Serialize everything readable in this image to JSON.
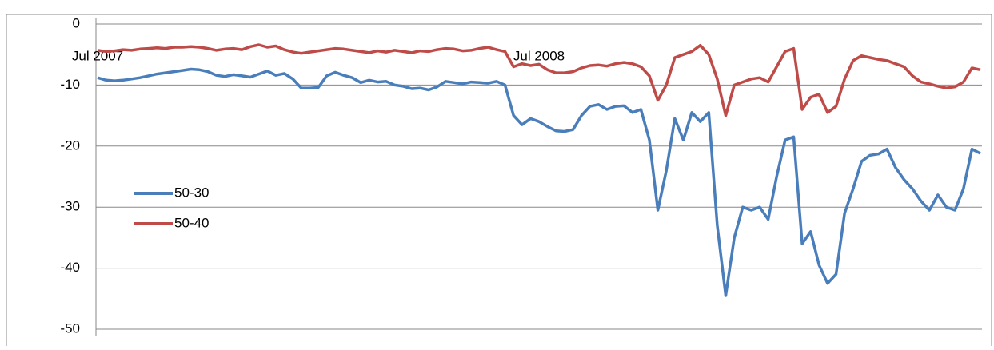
{
  "chart_data": {
    "type": "line",
    "categories": [
      "Jul 2007",
      null,
      null,
      null,
      null,
      null,
      null,
      null,
      null,
      null,
      null,
      null,
      null,
      null,
      null,
      null,
      null,
      null,
      null,
      null,
      null,
      null,
      null,
      null,
      null,
      null,
      null,
      null,
      null,
      null,
      null,
      null,
      null,
      null,
      null,
      null,
      null,
      null,
      null,
      null,
      null,
      null,
      null,
      null,
      null,
      null,
      null,
      null,
      null,
      null,
      null,
      null,
      "Jul 2008",
      null,
      null,
      null,
      null,
      null,
      null,
      null,
      null,
      null,
      null,
      null,
      null,
      null,
      null,
      null,
      null,
      null,
      null,
      null,
      null,
      null,
      null,
      null,
      null,
      null,
      null,
      null,
      null,
      null,
      null,
      null,
      null,
      null,
      null,
      null,
      null,
      null,
      null,
      null,
      null,
      null,
      null,
      null,
      null,
      null,
      null,
      null,
      null,
      null,
      null,
      null,
      null
    ],
    "series": [
      {
        "name": "50-30",
        "color": "#4a7ebb",
        "values": [
          -8.8,
          -9.2,
          -9.3,
          -9.2,
          -9.0,
          -8.8,
          -8.5,
          -8.2,
          -8.0,
          -7.8,
          -7.6,
          -7.4,
          -7.5,
          -7.8,
          -8.4,
          -8.6,
          -8.3,
          -8.5,
          -8.7,
          -8.2,
          -7.7,
          -8.4,
          -8.1,
          -9.0,
          -10.5,
          -10.5,
          -10.4,
          -8.5,
          -7.9,
          -8.4,
          -8.8,
          -9.6,
          -9.2,
          -9.5,
          -9.4,
          -10.0,
          -10.2,
          -10.6,
          -10.5,
          -10.8,
          -10.3,
          -9.4,
          -9.6,
          -9.8,
          -9.5,
          -9.6,
          -9.7,
          -9.4,
          -10.0,
          -15.0,
          -16.5,
          -15.5,
          -16.0,
          -16.8,
          -17.5,
          -17.6,
          -17.3,
          -15.0,
          -13.5,
          -13.2,
          -14.0,
          -13.5,
          -13.4,
          -14.5,
          -14.0,
          -19.0,
          -30.5,
          -24.0,
          -15.5,
          -19.0,
          -14.5,
          -16.0,
          -14.5,
          -33.0,
          -44.5,
          -35.0,
          -30.0,
          -30.5,
          -30.0,
          -32.0,
          -25.0,
          -19.0,
          -18.5,
          -36.0,
          -34.0,
          -39.5,
          -42.5,
          -41.0,
          -31.0,
          -27.0,
          -22.5,
          -21.5,
          -21.3,
          -20.5,
          -23.5,
          -25.5,
          -27.0,
          -29.0,
          -30.5,
          -28.0,
          -30.0,
          -30.5,
          -27.0,
          -20.5,
          -21.2
        ]
      },
      {
        "name": "50-40",
        "color": "#be4b48",
        "values": [
          -4.3,
          -4.5,
          -4.4,
          -4.2,
          -4.3,
          -4.1,
          -4.0,
          -3.9,
          -4.0,
          -3.8,
          -3.8,
          -3.7,
          -3.8,
          -4.0,
          -4.3,
          -4.1,
          -4.0,
          -4.2,
          -3.7,
          -3.4,
          -3.8,
          -3.6,
          -4.2,
          -4.6,
          -4.8,
          -4.6,
          -4.4,
          -4.2,
          -4.0,
          -4.1,
          -4.3,
          -4.5,
          -4.7,
          -4.4,
          -4.6,
          -4.3,
          -4.5,
          -4.7,
          -4.4,
          -4.5,
          -4.2,
          -4.0,
          -4.1,
          -4.4,
          -4.3,
          -4.0,
          -3.8,
          -4.2,
          -4.5,
          -7.0,
          -6.5,
          -6.8,
          -6.6,
          -7.5,
          -8.0,
          -8.0,
          -7.8,
          -7.2,
          -6.8,
          -6.7,
          -6.9,
          -6.5,
          -6.3,
          -6.5,
          -7.0,
          -8.5,
          -12.5,
          -10.0,
          -5.5,
          -5.0,
          -4.5,
          -3.5,
          -5.0,
          -9.0,
          -15.0,
          -10.0,
          -9.5,
          -9.0,
          -8.8,
          -9.5,
          -7.0,
          -4.5,
          -4.0,
          -14.0,
          -12.0,
          -11.5,
          -14.5,
          -13.5,
          -9.0,
          -6.0,
          -5.2,
          -5.5,
          -5.8,
          -6.0,
          -6.5,
          -7.0,
          -8.5,
          -9.5,
          -9.8,
          -10.2,
          -10.5,
          -10.3,
          -9.5,
          -7.2,
          -7.5
        ]
      }
    ],
    "ylim": [
      -50,
      0
    ],
    "yticks": [
      0,
      -10,
      -20,
      -30,
      -40,
      -50
    ],
    "grid": true
  }
}
